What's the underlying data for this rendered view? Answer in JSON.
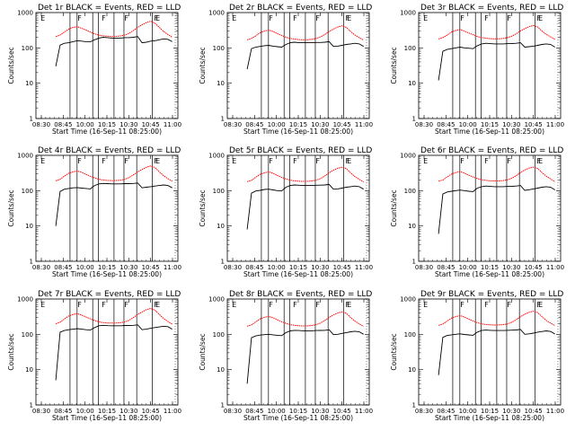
{
  "figure": {
    "background": "#ffffff",
    "panel_colors": {
      "axes": "#000000",
      "events": "#000000",
      "lld": "#ff0000"
    }
  },
  "chart_data": [
    {
      "type": "line",
      "title": "Det 1r BLACK = Events, RED = LLD",
      "xlabel": "Start Time (16-Sep-11 08:25:00)",
      "ylabel": "Counts/sec",
      "x_ticks": [
        "08:30",
        "08:45",
        "10:00",
        "10:15",
        "10:30",
        "10:45",
        "11:00"
      ],
      "y_ticks": [
        "1",
        "10",
        "100",
        "1000"
      ],
      "y_scale": "log",
      "ylim": [
        1,
        1000
      ],
      "flags": [
        "E",
        "F",
        "F",
        "F",
        "F",
        "E"
      ],
      "series": [
        {
          "name": "BLACK = Events",
          "color": "#000000",
          "values": [
            30,
            120,
            135,
            140,
            150,
            160,
            155,
            150,
            148,
            170,
            190,
            200,
            195,
            190,
            190,
            190,
            195,
            195,
            200,
            210,
            140,
            145,
            155,
            160,
            170,
            180,
            175,
            150
          ]
        },
        {
          "name": "RED = LLD",
          "color": "#ff0000",
          "values": [
            210,
            230,
            280,
            340,
            380,
            400,
            360,
            320,
            280,
            250,
            230,
            220,
            215,
            210,
            212,
            218,
            230,
            260,
            310,
            380,
            450,
            520,
            570,
            500,
            380,
            290,
            240,
            200
          ]
        }
      ]
    },
    {
      "type": "line",
      "title": "Det 2r BLACK = Events, RED = LLD",
      "xlabel": "Start Time (16-Sep-11 08:25:00)",
      "ylabel": "Counts/sec",
      "x_ticks": [
        "08:30",
        "08:45",
        "10:00",
        "10:15",
        "10:30",
        "10:45",
        "11:00"
      ],
      "y_ticks": [
        "1",
        "10",
        "100",
        "1000"
      ],
      "y_scale": "log",
      "ylim": [
        1,
        1000
      ],
      "flags": [
        "E",
        "F",
        "F",
        "F",
        "F",
        "E"
      ],
      "series": [
        {
          "name": "BLACK = Events",
          "color": "#000000",
          "values": [
            25,
            95,
            105,
            110,
            115,
            118,
            112,
            108,
            105,
            125,
            140,
            145,
            140,
            140,
            140,
            140,
            142,
            142,
            145,
            150,
            110,
            112,
            118,
            125,
            130,
            135,
            130,
            110
          ]
        },
        {
          "name": "RED = LLD",
          "color": "#ff0000",
          "values": [
            170,
            185,
            220,
            270,
            300,
            320,
            290,
            255,
            225,
            200,
            185,
            178,
            172,
            170,
            171,
            175,
            185,
            205,
            240,
            290,
            340,
            390,
            420,
            380,
            290,
            230,
            195,
            165
          ]
        }
      ]
    },
    {
      "type": "line",
      "title": "Det 3r BLACK = Events, RED = LLD",
      "xlabel": "Start Time (16-Sep-11 08:25:00)",
      "ylabel": "Counts/sec",
      "x_ticks": [
        "08:30",
        "08:45",
        "10:00",
        "10:15",
        "10:30",
        "10:45",
        "11:00"
      ],
      "y_ticks": [
        "1",
        "10",
        "100",
        "1000"
      ],
      "y_scale": "log",
      "ylim": [
        1,
        1000
      ],
      "flags": [
        "E",
        "F",
        "F",
        "F",
        "F",
        "E"
      ],
      "series": [
        {
          "name": "BLACK = Events",
          "color": "#000000",
          "values": [
            12,
            80,
            90,
            95,
            100,
            105,
            100,
            98,
            95,
            115,
            130,
            135,
            132,
            130,
            130,
            130,
            132,
            133,
            135,
            140,
            105,
            108,
            112,
            118,
            125,
            130,
            125,
            105
          ]
        },
        {
          "name": "RED = LLD",
          "color": "#ff0000",
          "values": [
            180,
            195,
            230,
            280,
            310,
            330,
            300,
            265,
            235,
            210,
            195,
            188,
            182,
            180,
            181,
            185,
            195,
            215,
            250,
            300,
            350,
            400,
            430,
            390,
            300,
            240,
            205,
            175
          ]
        }
      ]
    },
    {
      "type": "line",
      "title": "Det 4r BLACK = Events, RED = LLD",
      "xlabel": "Start Time (16-Sep-11 08:25:00)",
      "ylabel": "Counts/sec",
      "x_ticks": [
        "08:30",
        "08:45",
        "10:00",
        "10:15",
        "10:30",
        "10:45",
        "11:00"
      ],
      "y_ticks": [
        "1",
        "10",
        "100",
        "1000"
      ],
      "y_scale": "log",
      "ylim": [
        1,
        1000
      ],
      "flags": [
        "E",
        "F",
        "F",
        "F",
        "F",
        "E"
      ],
      "series": [
        {
          "name": "BLACK = Events",
          "color": "#000000",
          "values": [
            10,
            95,
            110,
            115,
            120,
            122,
            118,
            115,
            112,
            140,
            155,
            160,
            158,
            155,
            155,
            155,
            158,
            158,
            160,
            165,
            120,
            125,
            130,
            135,
            140,
            145,
            140,
            120
          ]
        },
        {
          "name": "RED = LLD",
          "color": "#ff0000",
          "values": [
            190,
            210,
            260,
            310,
            340,
            360,
            330,
            290,
            255,
            230,
            210,
            200,
            195,
            193,
            194,
            198,
            210,
            235,
            280,
            340,
            400,
            460,
            500,
            450,
            340,
            265,
            220,
            185
          ]
        }
      ]
    },
    {
      "type": "line",
      "title": "Det 5r BLACK = Events, RED = LLD",
      "xlabel": "Start Time (16-Sep-11 08:25:00)",
      "ylabel": "Counts/sec",
      "x_ticks": [
        "08:30",
        "08:45",
        "10:00",
        "10:15",
        "10:30",
        "10:45",
        "11:00"
      ],
      "y_ticks": [
        "1",
        "10",
        "100",
        "1000"
      ],
      "y_scale": "log",
      "ylim": [
        1,
        1000
      ],
      "flags": [
        "E",
        "F",
        "F",
        "F",
        "F",
        "E"
      ],
      "series": [
        {
          "name": "BLACK = Events",
          "color": "#000000",
          "values": [
            8,
            85,
            98,
            102,
            108,
            110,
            105,
            100,
            98,
            125,
            140,
            145,
            142,
            140,
            140,
            140,
            142,
            143,
            145,
            150,
            110,
            112,
            118,
            125,
            130,
            135,
            130,
            110
          ]
        },
        {
          "name": "RED = LLD",
          "color": "#ff0000",
          "values": [
            180,
            195,
            240,
            290,
            320,
            340,
            310,
            270,
            240,
            215,
            198,
            190,
            185,
            183,
            184,
            188,
            198,
            220,
            260,
            320,
            380,
            430,
            460,
            420,
            320,
            250,
            210,
            175
          ]
        }
      ]
    },
    {
      "type": "line",
      "title": "Det 6r BLACK = Events, RED = LLD",
      "xlabel": "Start Time (16-Sep-11 08:25:00)",
      "ylabel": "Counts/sec",
      "x_ticks": [
        "08:30",
        "08:45",
        "10:00",
        "10:15",
        "10:30",
        "10:45",
        "11:00"
      ],
      "y_ticks": [
        "1",
        "10",
        "100",
        "1000"
      ],
      "y_scale": "log",
      "ylim": [
        1,
        1000
      ],
      "flags": [
        "E",
        "F",
        "F",
        "F",
        "F",
        "E"
      ],
      "series": [
        {
          "name": "BLACK = Events",
          "color": "#000000",
          "values": [
            6,
            80,
            92,
            96,
            100,
            104,
            100,
            96,
            94,
            118,
            130,
            135,
            132,
            130,
            130,
            130,
            132,
            133,
            135,
            140,
            102,
            106,
            112,
            118,
            125,
            130,
            125,
            105
          ]
        },
        {
          "name": "RED = LLD",
          "color": "#ff0000",
          "values": [
            185,
            200,
            245,
            295,
            325,
            345,
            315,
            275,
            245,
            220,
            203,
            195,
            190,
            188,
            189,
            193,
            203,
            225,
            265,
            325,
            385,
            435,
            465,
            425,
            325,
            255,
            215,
            180
          ]
        }
      ]
    },
    {
      "type": "line",
      "title": "Det 7r BLACK = Events, RED = LLD",
      "xlabel": "Start Time (16-Sep-11 08:25:00)",
      "ylabel": "Counts/sec",
      "x_ticks": [
        "08:30",
        "08:45",
        "10:00",
        "10:15",
        "10:30",
        "10:45",
        "11:00"
      ],
      "y_ticks": [
        "1",
        "10",
        "100",
        "1000"
      ],
      "y_scale": "log",
      "ylim": [
        1,
        1000
      ],
      "flags": [
        "E",
        "F",
        "F",
        "F",
        "F",
        "E"
      ],
      "series": [
        {
          "name": "BLACK = Events",
          "color": "#000000",
          "values": [
            5,
            115,
            128,
            135,
            140,
            145,
            140,
            135,
            132,
            155,
            175,
            180,
            176,
            175,
            175,
            175,
            178,
            178,
            180,
            185,
            135,
            140,
            148,
            155,
            162,
            170,
            165,
            140
          ]
        },
        {
          "name": "RED = LLD",
          "color": "#ff0000",
          "values": [
            200,
            220,
            275,
            330,
            365,
            385,
            350,
            310,
            275,
            245,
            225,
            215,
            210,
            208,
            209,
            213,
            225,
            250,
            300,
            365,
            430,
            500,
            540,
            480,
            365,
            280,
            230,
            195
          ]
        }
      ]
    },
    {
      "type": "line",
      "title": "Det 8r BLACK = Events, RED = LLD",
      "xlabel": "Start Time (16-Sep-11 08:25:00)",
      "ylabel": "Counts/sec",
      "x_ticks": [
        "08:30",
        "08:45",
        "10:00",
        "10:15",
        "10:30",
        "10:45",
        "11:00"
      ],
      "y_ticks": [
        "1",
        "10",
        "100",
        "1000"
      ],
      "y_scale": "log",
      "ylim": [
        1,
        1000
      ],
      "flags": [
        "E",
        "F",
        "F",
        "F",
        "F",
        "E"
      ],
      "series": [
        {
          "name": "BLACK = Events",
          "color": "#000000",
          "values": [
            4,
            80,
            90,
            95,
            98,
            100,
            97,
            94,
            92,
            112,
            125,
            130,
            128,
            126,
            126,
            126,
            128,
            129,
            130,
            135,
            98,
            100,
            106,
            112,
            118,
            122,
            118,
            100
          ]
        },
        {
          "name": "RED = LLD",
          "color": "#ff0000",
          "values": [
            170,
            185,
            225,
            275,
            305,
            320,
            295,
            258,
            228,
            205,
            188,
            180,
            175,
            173,
            174,
            178,
            188,
            208,
            245,
            300,
            355,
            400,
            430,
            395,
            300,
            235,
            198,
            168
          ]
        }
      ]
    },
    {
      "type": "line",
      "title": "Det 9r BLACK = Events, RED = LLD",
      "xlabel": "Start Time (16-Sep-11 08:25:00)",
      "ylabel": "Counts/sec",
      "x_ticks": [
        "08:30",
        "08:45",
        "10:00",
        "10:15",
        "10:30",
        "10:45",
        "11:00"
      ],
      "y_ticks": [
        "1",
        "10",
        "100",
        "1000"
      ],
      "y_scale": "log",
      "ylim": [
        1,
        1000
      ],
      "flags": [
        "E",
        "F",
        "F",
        "F",
        "F",
        "E"
      ],
      "series": [
        {
          "name": "BLACK = Events",
          "color": "#000000",
          "values": [
            7,
            82,
            93,
            97,
            100,
            103,
            99,
            96,
            94,
            115,
            128,
            132,
            130,
            128,
            128,
            128,
            130,
            131,
            133,
            138,
            100,
            103,
            108,
            115,
            120,
            125,
            120,
            102
          ]
        },
        {
          "name": "RED = LLD",
          "color": "#ff0000",
          "values": [
            180,
            195,
            238,
            288,
            318,
            338,
            308,
            270,
            240,
            215,
            198,
            190,
            185,
            183,
            184,
            188,
            198,
            220,
            258,
            315,
            370,
            420,
            450,
            410,
            315,
            245,
            208,
            175
          ]
        }
      ]
    }
  ]
}
